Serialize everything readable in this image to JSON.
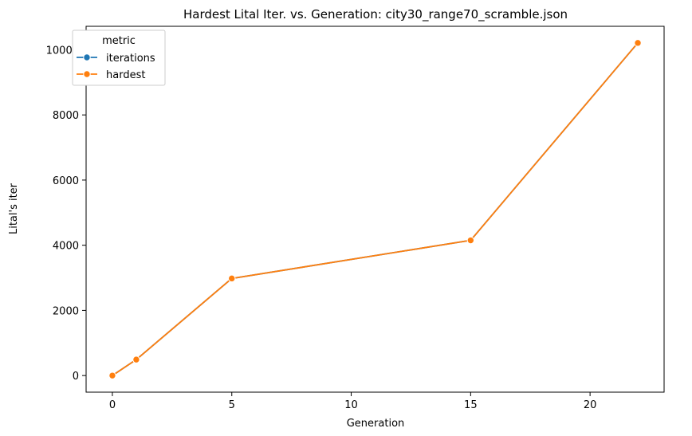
{
  "chart_data": {
    "type": "line",
    "title": "Hardest Lital Iter. vs. Generation: city30_range70_scramble.json",
    "xlabel": "Generation",
    "ylabel": "Lital's iter",
    "xlim": [
      -1.1,
      23.1
    ],
    "ylim": [
      -510,
      10720
    ],
    "xticks": [
      0,
      5,
      10,
      15,
      20
    ],
    "yticks": [
      0,
      2000,
      4000,
      6000,
      8000,
      10000
    ],
    "legend": {
      "title": "metric",
      "placement": "upper-left"
    },
    "x": [
      0,
      1,
      5,
      15,
      22
    ],
    "series": [
      {
        "name": "iterations",
        "color": "#1f77b4",
        "values": [
          0,
          490,
          2980,
          4150,
          10210
        ]
      },
      {
        "name": "hardest",
        "color": "#ff7f0e",
        "values": [
          0,
          490,
          2980,
          4150,
          10210
        ]
      }
    ],
    "grid": false
  }
}
